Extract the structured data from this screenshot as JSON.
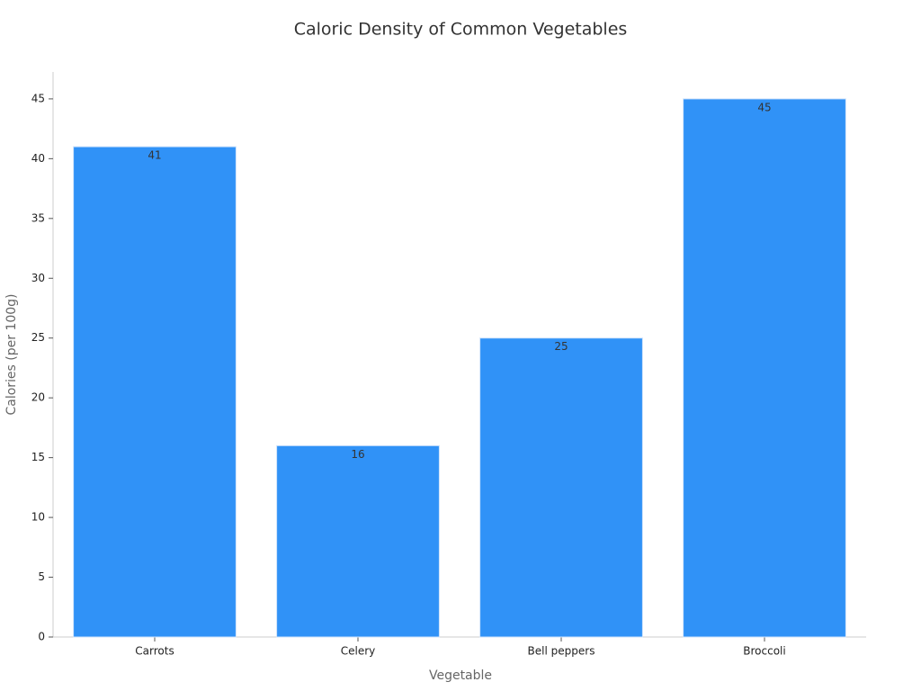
{
  "chart_data": {
    "type": "bar",
    "title": "Caloric Density of Common Vegetables",
    "x_label": "Vegetable",
    "y_label": "Calories (per 100g)",
    "categories": [
      "Carrots",
      "Celery",
      "Bell peppers",
      "Broccoli"
    ],
    "values": [
      41,
      16,
      25,
      45
    ],
    "color": "#3092f7",
    "ylim": [
      0,
      47.25
    ],
    "yticks": [
      0,
      5,
      10,
      15,
      20,
      25,
      30,
      35,
      40,
      45
    ],
    "grid": false
  }
}
